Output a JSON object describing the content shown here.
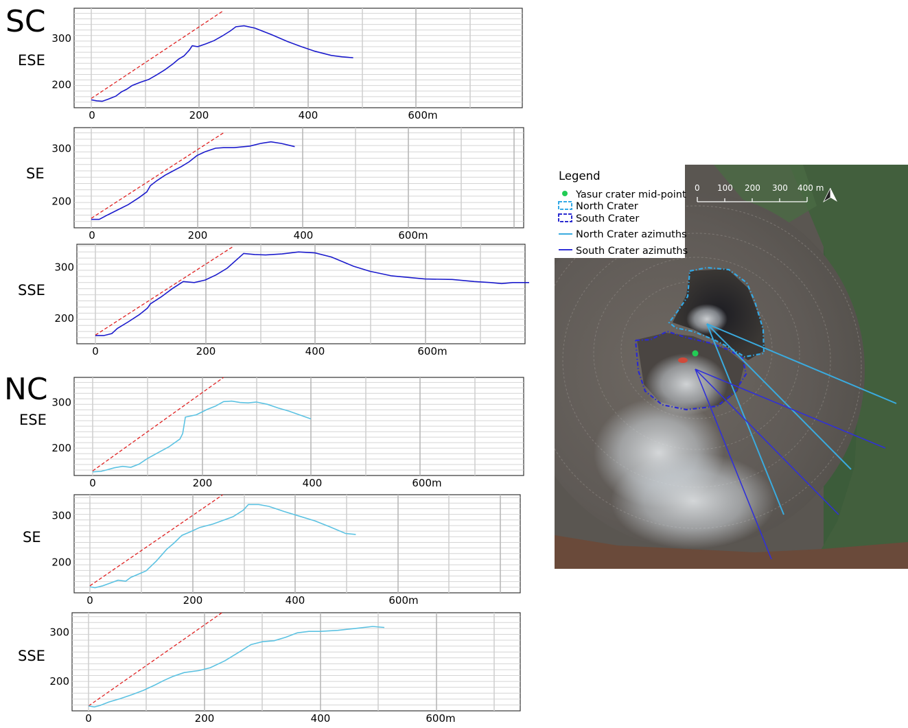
{
  "groups": [
    {
      "label": "SC"
    },
    {
      "label": "NC"
    }
  ],
  "chart_data": [
    {
      "type": "line",
      "group": "SC",
      "direction": "ESE",
      "color": "#1a1acc",
      "xlim": [
        0,
        800
      ],
      "ylim": [
        150,
        365
      ],
      "xticks": [
        0,
        200,
        400,
        600
      ],
      "xtick_labels": [
        "0",
        "200",
        "400",
        "600m"
      ],
      "yticks": [
        200,
        300
      ],
      "ytick_labels": [
        "200",
        "300"
      ],
      "reference_line": {
        "color": "#e02020",
        "points": [
          [
            0,
            170
          ],
          [
            240,
            358
          ]
        ]
      },
      "series": [
        {
          "points": [
            [
              0,
              167
            ],
            [
              10,
              165
            ],
            [
              20,
              164
            ],
            [
              30,
              168
            ],
            [
              45,
              175
            ],
            [
              55,
              184
            ],
            [
              65,
              190
            ],
            [
              75,
              198
            ],
            [
              90,
              205
            ],
            [
              105,
              211
            ],
            [
              120,
              221
            ],
            [
              135,
              232
            ],
            [
              150,
              245
            ],
            [
              160,
              255
            ],
            [
              170,
              262
            ],
            [
              180,
              275
            ],
            [
              185,
              284
            ],
            [
              195,
              282
            ],
            [
              210,
              288
            ],
            [
              225,
              295
            ],
            [
              240,
              305
            ],
            [
              255,
              316
            ],
            [
              265,
              325
            ],
            [
              280,
              327
            ],
            [
              300,
              322
            ],
            [
              330,
              308
            ],
            [
              360,
              293
            ],
            [
              385,
              282
            ],
            [
              410,
              272
            ],
            [
              440,
              263
            ],
            [
              460,
              260
            ],
            [
              480,
              258
            ]
          ]
        }
      ]
    },
    {
      "type": "line",
      "group": "SC",
      "direction": "SE",
      "color": "#1a1acc",
      "xlim": [
        0,
        800
      ],
      "ylim": [
        150,
        340
      ],
      "xticks": [
        0,
        200,
        400,
        600
      ],
      "xtick_labels": [
        "0",
        "200",
        "400",
        "600m"
      ],
      "yticks": [
        200,
        300
      ],
      "ytick_labels": [
        "200",
        "300"
      ],
      "reference_line": {
        "color": "#e02020",
        "points": [
          [
            0,
            168
          ],
          [
            250,
            330
          ]
        ]
      },
      "series": [
        {
          "points": [
            [
              0,
              166
            ],
            [
              15,
              166
            ],
            [
              30,
              174
            ],
            [
              50,
              184
            ],
            [
              70,
              194
            ],
            [
              90,
              207
            ],
            [
              105,
              218
            ],
            [
              112,
              230
            ],
            [
              125,
              240
            ],
            [
              140,
              250
            ],
            [
              155,
              258
            ],
            [
              170,
              266
            ],
            [
              185,
              275
            ],
            [
              200,
              287
            ],
            [
              215,
              294
            ],
            [
              235,
              301
            ],
            [
              250,
              302
            ],
            [
              270,
              302
            ],
            [
              300,
              305
            ],
            [
              320,
              310
            ],
            [
              340,
              313
            ],
            [
              360,
              310
            ],
            [
              385,
              304
            ]
          ]
        }
      ]
    },
    {
      "type": "line",
      "group": "SC",
      "direction": "SSE",
      "color": "#1a1acc",
      "xlim": [
        0,
        800
      ],
      "ylim": [
        150,
        345
      ],
      "xticks": [
        0,
        200,
        400,
        600
      ],
      "xtick_labels": [
        "0",
        "200",
        "400",
        "600m"
      ],
      "yticks": [
        200,
        300
      ],
      "ytick_labels": [
        "200",
        "300"
      ],
      "reference_line": {
        "color": "#e02020",
        "points": [
          [
            0,
            167
          ],
          [
            250,
            340
          ]
        ]
      },
      "series": [
        {
          "points": [
            [
              0,
              166
            ],
            [
              15,
              166
            ],
            [
              30,
              170
            ],
            [
              40,
              180
            ],
            [
              60,
              193
            ],
            [
              80,
              207
            ],
            [
              95,
              220
            ],
            [
              100,
              228
            ],
            [
              120,
              242
            ],
            [
              140,
              258
            ],
            [
              160,
              272
            ],
            [
              180,
              270
            ],
            [
              200,
              275
            ],
            [
              220,
              285
            ],
            [
              240,
              298
            ],
            [
              270,
              327
            ],
            [
              290,
              325
            ],
            [
              310,
              324
            ],
            [
              340,
              326
            ],
            [
              370,
              330
            ],
            [
              400,
              328
            ],
            [
              430,
              320
            ],
            [
              470,
              302
            ],
            [
              500,
              292
            ],
            [
              540,
              283
            ],
            [
              600,
              277
            ],
            [
              650,
              276
            ],
            [
              690,
              272
            ],
            [
              720,
              270
            ],
            [
              740,
              268
            ],
            [
              760,
              270
            ],
            [
              790,
              270
            ]
          ]
        }
      ]
    },
    {
      "type": "line",
      "group": "NC",
      "direction": "ESE",
      "color": "#5bc2e2",
      "xlim": [
        0,
        800
      ],
      "ylim": [
        140,
        355
      ],
      "xticks": [
        0,
        200,
        400,
        600
      ],
      "xtick_labels": [
        "0",
        "200",
        "400",
        "600m"
      ],
      "yticks": [
        200,
        300
      ],
      "ytick_labels": [
        "200",
        "300"
      ],
      "reference_line": {
        "color": "#e02020",
        "points": [
          [
            0,
            150
          ],
          [
            240,
            355
          ]
        ]
      },
      "series": [
        {
          "points": [
            [
              0,
              148
            ],
            [
              15,
              149
            ],
            [
              25,
              152
            ],
            [
              40,
              157
            ],
            [
              55,
              160
            ],
            [
              70,
              158
            ],
            [
              85,
              165
            ],
            [
              100,
              177
            ],
            [
              120,
              190
            ],
            [
              140,
              203
            ],
            [
              160,
              220
            ],
            [
              165,
              232
            ],
            [
              170,
              268
            ],
            [
              190,
              273
            ],
            [
              210,
              285
            ],
            [
              225,
              292
            ],
            [
              240,
              302
            ],
            [
              255,
              303
            ],
            [
              270,
              300
            ],
            [
              285,
              299
            ],
            [
              300,
              301
            ],
            [
              320,
              296
            ],
            [
              340,
              288
            ],
            [
              360,
              281
            ],
            [
              400,
              264
            ]
          ]
        }
      ]
    },
    {
      "type": "line",
      "group": "NC",
      "direction": "SE",
      "color": "#5bc2e2",
      "xlim": [
        0,
        800
      ],
      "ylim": [
        135,
        345
      ],
      "xticks": [
        0,
        200,
        400,
        600
      ],
      "xtick_labels": [
        "0",
        "200",
        "400",
        "600m"
      ],
      "yticks": [
        200,
        300
      ],
      "ytick_labels": [
        "200",
        "300"
      ],
      "reference_line": {
        "color": "#e02020",
        "points": [
          [
            0,
            150
          ],
          [
            260,
            345
          ]
        ]
      },
      "series": [
        {
          "points": [
            [
              0,
              148
            ],
            [
              10,
              146
            ],
            [
              25,
              150
            ],
            [
              40,
              156
            ],
            [
              55,
              162
            ],
            [
              70,
              160
            ],
            [
              80,
              168
            ],
            [
              95,
              175
            ],
            [
              110,
              182
            ],
            [
              130,
              203
            ],
            [
              150,
              228
            ],
            [
              165,
              242
            ],
            [
              180,
              258
            ],
            [
              195,
              265
            ],
            [
              215,
              275
            ],
            [
              240,
              282
            ],
            [
              260,
              290
            ],
            [
              280,
              298
            ],
            [
              300,
              312
            ],
            [
              310,
              324
            ],
            [
              330,
              324
            ],
            [
              350,
              320
            ],
            [
              380,
              309
            ],
            [
              410,
              299
            ],
            [
              440,
              289
            ],
            [
              470,
              276
            ],
            [
              500,
              262
            ],
            [
              520,
              260
            ]
          ]
        }
      ]
    },
    {
      "type": "line",
      "group": "NC",
      "direction": "SSE",
      "color": "#5bc2e2",
      "xlim": [
        0,
        750
      ],
      "ylim": [
        140,
        340
      ],
      "xticks": [
        0,
        200,
        400,
        600
      ],
      "xtick_labels": [
        "0",
        "200",
        "400",
        "600m"
      ],
      "yticks": [
        200,
        300
      ],
      "ytick_labels": [
        "200",
        "300"
      ],
      "reference_line": {
        "color": "#e02020",
        "points": [
          [
            0,
            150
          ],
          [
            230,
            340
          ]
        ]
      },
      "series": [
        {
          "points": [
            [
              0,
              150
            ],
            [
              10,
              148
            ],
            [
              20,
              151
            ],
            [
              35,
              158
            ],
            [
              55,
              165
            ],
            [
              75,
              173
            ],
            [
              95,
              182
            ],
            [
              115,
              193
            ],
            [
              130,
              202
            ],
            [
              145,
              210
            ],
            [
              165,
              218
            ],
            [
              190,
              222
            ],
            [
              210,
              228
            ],
            [
              235,
              242
            ],
            [
              260,
              260
            ],
            [
              280,
              275
            ],
            [
              300,
              281
            ],
            [
              320,
              283
            ],
            [
              340,
              290
            ],
            [
              360,
              299
            ],
            [
              380,
              302
            ],
            [
              400,
              302
            ],
            [
              430,
              304
            ],
            [
              460,
              308
            ],
            [
              490,
              312
            ],
            [
              510,
              310
            ]
          ]
        }
      ]
    }
  ],
  "map": {
    "legend": {
      "title": "Legend",
      "items": [
        {
          "label": "Yasur crater mid-point",
          "symbol": "dot",
          "color": "#22cc55"
        },
        {
          "label": "North Crater",
          "symbol": "dashed-box",
          "color": "#33a9e6"
        },
        {
          "label": "South Crater",
          "symbol": "dashed-box",
          "color": "#2a2ad0"
        },
        {
          "label": "North Crater azimuths",
          "symbol": "line",
          "color": "#3aabdf"
        },
        {
          "label": "South Crater azimuths",
          "symbol": "line",
          "color": "#3030d8"
        }
      ]
    },
    "scale_bar": {
      "labels": [
        "0",
        "100",
        "200",
        "300",
        "400 m"
      ]
    },
    "north_arrow": "north-arrow-icon"
  }
}
